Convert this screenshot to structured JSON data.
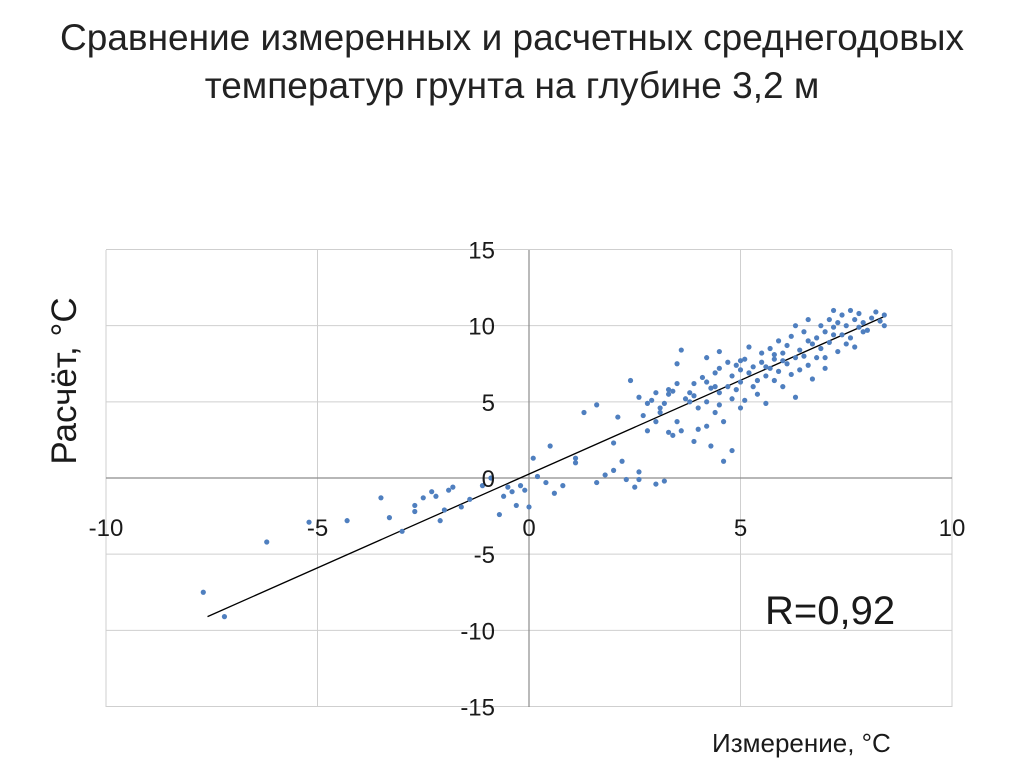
{
  "chart_data": {
    "type": "scatter",
    "title_lines": [
      "Сравнение измеренных и расчетных среднегодовых",
      "температур грунта на глубине 3,2 м"
    ],
    "xlabel": "Измерение, °C",
    "ylabel": "Расчёт, °C",
    "annotation": "R=0,92",
    "xlim": [
      -10,
      10
    ],
    "ylim": [
      -15,
      15
    ],
    "x_ticks": [
      -10,
      -5,
      0,
      5,
      10
    ],
    "x_tick_labels": [
      "-10",
      "-5",
      "0",
      "5",
      "10"
    ],
    "y_ticks": [
      15,
      10,
      5,
      0,
      -5,
      -10,
      -15
    ],
    "y_tick_labels": [
      "15",
      "10",
      "5",
      "0",
      "-5",
      "-10",
      "-15"
    ],
    "grid": true,
    "point_color": "#4f7fbf",
    "trendline_color": "#000000",
    "trendline": {
      "x": [
        -7.6,
        8.4
      ],
      "y": [
        -9.1,
        10.6
      ]
    },
    "points": [
      [
        -7.7,
        -7.5
      ],
      [
        -7.2,
        -9.1
      ],
      [
        -6.2,
        -4.2
      ],
      [
        -5.2,
        -2.9
      ],
      [
        -4.3,
        -2.8
      ],
      [
        -3.5,
        -1.3
      ],
      [
        -3.3,
        -2.6
      ],
      [
        -3.0,
        -3.5
      ],
      [
        -2.7,
        -2.2
      ],
      [
        -2.7,
        -1.8
      ],
      [
        -2.5,
        -1.3
      ],
      [
        -2.3,
        -0.9
      ],
      [
        -2.2,
        -1.2
      ],
      [
        -2.1,
        -2.8
      ],
      [
        -2.0,
        -2.1
      ],
      [
        -1.9,
        -0.8
      ],
      [
        -1.8,
        -0.6
      ],
      [
        -1.6,
        -1.9
      ],
      [
        -1.4,
        -1.4
      ],
      [
        -1.1,
        -0.5
      ],
      [
        -0.9,
        0.0
      ],
      [
        -0.7,
        -2.4
      ],
      [
        -0.6,
        -1.2
      ],
      [
        -0.5,
        -0.6
      ],
      [
        -0.4,
        -0.9
      ],
      [
        -0.3,
        -1.8
      ],
      [
        -0.2,
        -0.5
      ],
      [
        -0.1,
        -0.8
      ],
      [
        0.0,
        -1.9
      ],
      [
        0.1,
        1.3
      ],
      [
        0.2,
        0.1
      ],
      [
        0.4,
        -0.3
      ],
      [
        0.6,
        -1.0
      ],
      [
        0.5,
        2.1
      ],
      [
        0.8,
        -0.5
      ],
      [
        1.1,
        1.3
      ],
      [
        1.1,
        1.0
      ],
      [
        1.3,
        4.3
      ],
      [
        1.6,
        -0.3
      ],
      [
        1.6,
        4.8
      ],
      [
        1.8,
        0.2
      ],
      [
        2.0,
        0.5
      ],
      [
        2.2,
        1.1
      ],
      [
        2.3,
        -0.1
      ],
      [
        2.6,
        0.4
      ],
      [
        2.0,
        2.3
      ],
      [
        2.1,
        4.0
      ],
      [
        2.4,
        6.4
      ],
      [
        2.5,
        -0.6
      ],
      [
        2.6,
        -0.1
      ],
      [
        2.6,
        5.3
      ],
      [
        2.8,
        3.1
      ],
      [
        2.8,
        4.9
      ],
      [
        3.0,
        -0.4
      ],
      [
        3.0,
        3.7
      ],
      [
        3.0,
        5.6
      ],
      [
        3.1,
        4.3
      ],
      [
        3.2,
        -0.2
      ],
      [
        3.2,
        4.9
      ],
      [
        3.3,
        3.0
      ],
      [
        3.3,
        5.5
      ],
      [
        3.4,
        5.7
      ],
      [
        3.5,
        3.7
      ],
      [
        3.5,
        6.2
      ],
      [
        3.5,
        7.5
      ],
      [
        3.6,
        8.4
      ],
      [
        3.6,
        3.1
      ],
      [
        3.7,
        5.2
      ],
      [
        3.8,
        5.6
      ],
      [
        3.9,
        6.2
      ],
      [
        3.9,
        2.4
      ],
      [
        4.0,
        3.2
      ],
      [
        4.0,
        4.6
      ],
      [
        4.1,
        6.6
      ],
      [
        4.2,
        3.4
      ],
      [
        4.2,
        5.0
      ],
      [
        4.2,
        7.9
      ],
      [
        4.3,
        2.1
      ],
      [
        4.3,
        5.9
      ],
      [
        4.4,
        6.9
      ],
      [
        4.4,
        4.3
      ],
      [
        4.5,
        7.2
      ],
      [
        4.5,
        5.6
      ],
      [
        4.5,
        8.3
      ],
      [
        4.6,
        1.1
      ],
      [
        4.6,
        3.7
      ],
      [
        4.7,
        6.0
      ],
      [
        4.7,
        7.6
      ],
      [
        4.8,
        5.2
      ],
      [
        4.8,
        1.8
      ],
      [
        4.8,
        6.7
      ],
      [
        4.9,
        5.8
      ],
      [
        5.0,
        7.1
      ],
      [
        5.0,
        6.3
      ],
      [
        5.0,
        4.6
      ],
      [
        5.1,
        5.1
      ],
      [
        5.1,
        7.8
      ],
      [
        5.2,
        6.9
      ],
      [
        5.3,
        6.0
      ],
      [
        5.3,
        7.3
      ],
      [
        5.4,
        6.4
      ],
      [
        5.4,
        5.5
      ],
      [
        5.5,
        7.6
      ],
      [
        5.5,
        8.2
      ],
      [
        5.6,
        6.7
      ],
      [
        5.6,
        4.9
      ],
      [
        5.7,
        7.2
      ],
      [
        5.7,
        8.5
      ],
      [
        5.8,
        6.4
      ],
      [
        5.8,
        7.8
      ],
      [
        5.9,
        7.0
      ],
      [
        5.9,
        9.0
      ],
      [
        6.0,
        8.2
      ],
      [
        6.0,
        6.0
      ],
      [
        6.1,
        7.5
      ],
      [
        6.1,
        8.7
      ],
      [
        6.2,
        6.8
      ],
      [
        6.2,
        9.3
      ],
      [
        6.3,
        7.9
      ],
      [
        6.3,
        5.3
      ],
      [
        6.4,
        8.4
      ],
      [
        6.4,
        7.1
      ],
      [
        6.5,
        9.6
      ],
      [
        6.5,
        8.0
      ],
      [
        6.6,
        7.4
      ],
      [
        6.6,
        10.4
      ],
      [
        6.7,
        8.8
      ],
      [
        6.7,
        6.5
      ],
      [
        6.8,
        9.2
      ],
      [
        6.8,
        7.9
      ],
      [
        6.9,
        10.0
      ],
      [
        6.9,
        8.5
      ],
      [
        7.0,
        9.6
      ],
      [
        7.0,
        7.2
      ],
      [
        7.1,
        10.4
      ],
      [
        7.1,
        8.9
      ],
      [
        7.2,
        9.9
      ],
      [
        7.2,
        11.0
      ],
      [
        7.3,
        8.3
      ],
      [
        7.3,
        10.2
      ],
      [
        7.4,
        9.4
      ],
      [
        7.4,
        10.7
      ],
      [
        7.5,
        8.8
      ],
      [
        7.5,
        10.0
      ],
      [
        7.6,
        11.0
      ],
      [
        7.6,
        9.2
      ],
      [
        7.7,
        10.4
      ],
      [
        7.7,
        8.6
      ],
      [
        7.8,
        9.9
      ],
      [
        7.8,
        10.8
      ],
      [
        7.9,
        10.2
      ],
      [
        8.0,
        9.7
      ],
      [
        8.1,
        10.5
      ],
      [
        8.2,
        10.9
      ],
      [
        8.3,
        10.3
      ],
      [
        8.4,
        10.7
      ],
      [
        8.4,
        10.0
      ],
      [
        7.0,
        7.9
      ],
      [
        6.3,
        10.0
      ],
      [
        5.6,
        7.3
      ],
      [
        5.2,
        8.6
      ],
      [
        4.9,
        7.4
      ],
      [
        4.5,
        4.8
      ],
      [
        4.2,
        6.3
      ],
      [
        3.8,
        5.0
      ],
      [
        3.4,
        2.8
      ],
      [
        3.1,
        4.6
      ],
      [
        2.7,
        4.1
      ],
      [
        6.0,
        7.7
      ],
      [
        6.6,
        9.0
      ],
      [
        7.2,
        9.4
      ],
      [
        7.9,
        9.6
      ],
      [
        5.8,
        8.1
      ],
      [
        5.0,
        7.7
      ],
      [
        4.4,
        6.0
      ],
      [
        3.9,
        5.4
      ],
      [
        3.3,
        5.8
      ],
      [
        2.9,
        5.1
      ]
    ]
  }
}
